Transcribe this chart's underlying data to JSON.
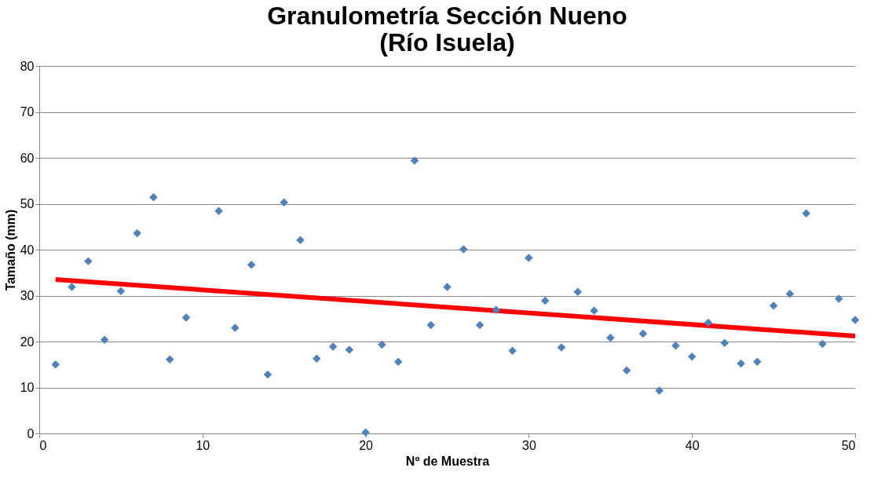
{
  "chart_data": {
    "type": "scatter",
    "title": "Granulometría Sección Nueno\n(Río Isuela)",
    "xlabel": "Nº de Muestra",
    "ylabel": "Tamaño (mm)",
    "xlim": [
      0,
      50
    ],
    "xticks": [
      0,
      10,
      20,
      30,
      40,
      50
    ],
    "ylim": [
      0,
      80
    ],
    "yticks": [
      0,
      10,
      20,
      30,
      40,
      50,
      60,
      70,
      80
    ],
    "grid": "y",
    "series": [
      {
        "marker": "diamond",
        "color": "#4f81bd",
        "x": [
          1,
          2,
          3,
          4,
          5,
          6,
          7,
          8,
          9,
          11,
          12,
          13,
          14,
          15,
          16,
          17,
          18,
          19,
          20,
          21,
          22,
          23,
          24,
          25,
          26,
          27,
          28,
          29,
          30,
          31,
          32,
          33,
          34,
          35,
          36,
          37,
          38,
          39,
          40,
          41,
          42,
          43,
          44,
          45,
          46,
          47,
          48,
          49,
          50
        ],
        "values": [
          15.0,
          31.9,
          37.5,
          20.4,
          31.0,
          43.6,
          51.4,
          16.1,
          25.2,
          48.4,
          23.0,
          36.7,
          12.8,
          50.3,
          42.1,
          16.3,
          18.9,
          18.2,
          0.2,
          19.3,
          15.6,
          59.4,
          23.6,
          31.9,
          40.1,
          23.6,
          26.9,
          18.0,
          38.2,
          28.9,
          18.7,
          30.8,
          26.7,
          20.8,
          13.7,
          21.7,
          9.3,
          19.1,
          16.7,
          24.1,
          19.7,
          15.2,
          15.6,
          27.8,
          30.4,
          47.9,
          19.5,
          29.3,
          24.7
        ]
      },
      {
        "type": "line",
        "marker": "none",
        "color": "#ff0000",
        "x": [
          1,
          50
        ],
        "values": [
          33.5,
          21.2
        ]
      }
    ]
  }
}
